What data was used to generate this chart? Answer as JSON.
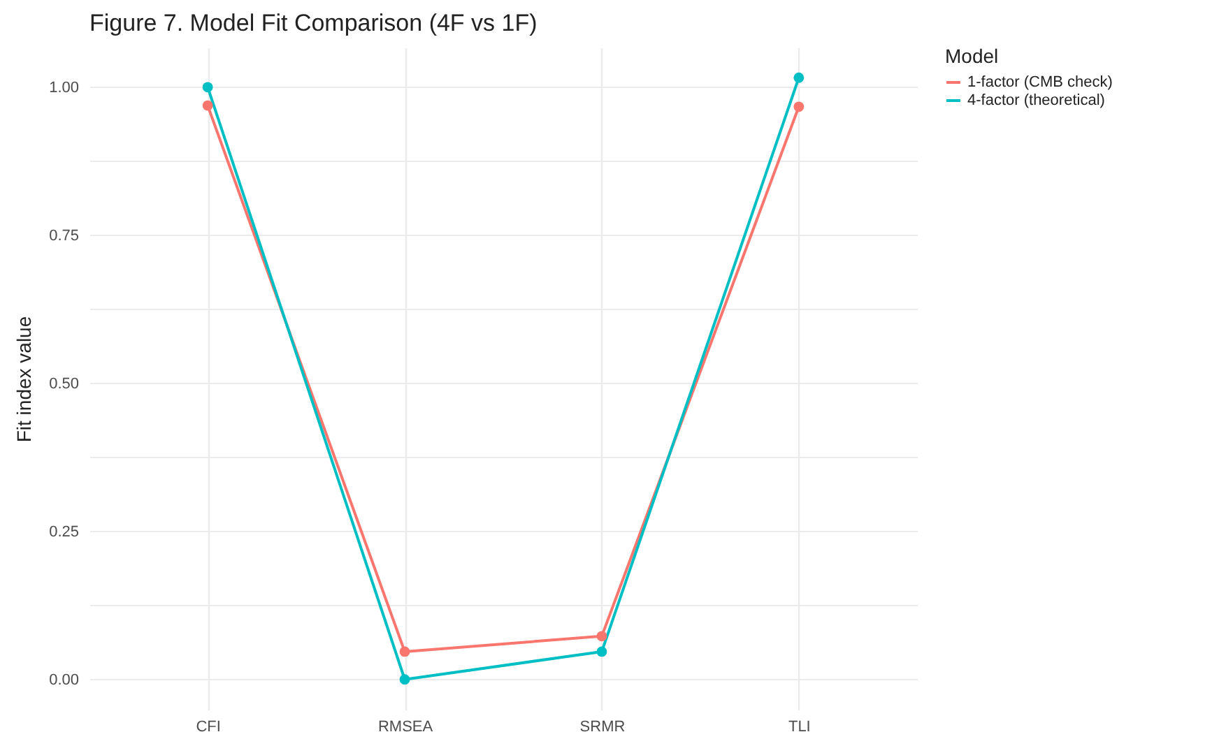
{
  "chart_data": {
    "type": "line",
    "title": "Figure 7. Model Fit Comparison (4F vs 1F)",
    "xlabel": null,
    "ylabel": "Fit index value",
    "legend_title": "Model",
    "categories": [
      "CFI",
      "RMSEA",
      "SRMR",
      "TLI"
    ],
    "series": [
      {
        "name": "1-factor (CMB check)",
        "color": "#f8766d",
        "values": [
          0.969,
          0.047,
          0.073,
          0.967
        ]
      },
      {
        "name": "4-factor (theoretical)",
        "color": "#00bfc4",
        "values": [
          1.0,
          0.0,
          0.047,
          1.016
        ]
      }
    ],
    "ylim": [
      -0.051,
      1.067
    ],
    "yticks": [
      {
        "value": 0,
        "label": "0.00"
      },
      {
        "value": 0.125,
        "label": null
      },
      {
        "value": 0.25,
        "label": "0.25"
      },
      {
        "value": 0.375,
        "label": null
      },
      {
        "value": 0.5,
        "label": "0.50"
      },
      {
        "value": 0.625,
        "label": null
      },
      {
        "value": 0.75,
        "label": "0.75"
      },
      {
        "value": 0.875,
        "label": null
      },
      {
        "value": 1,
        "label": "1.00"
      }
    ],
    "grid": true,
    "legend": "right",
    "marker": "circle",
    "line_style": "solid"
  }
}
